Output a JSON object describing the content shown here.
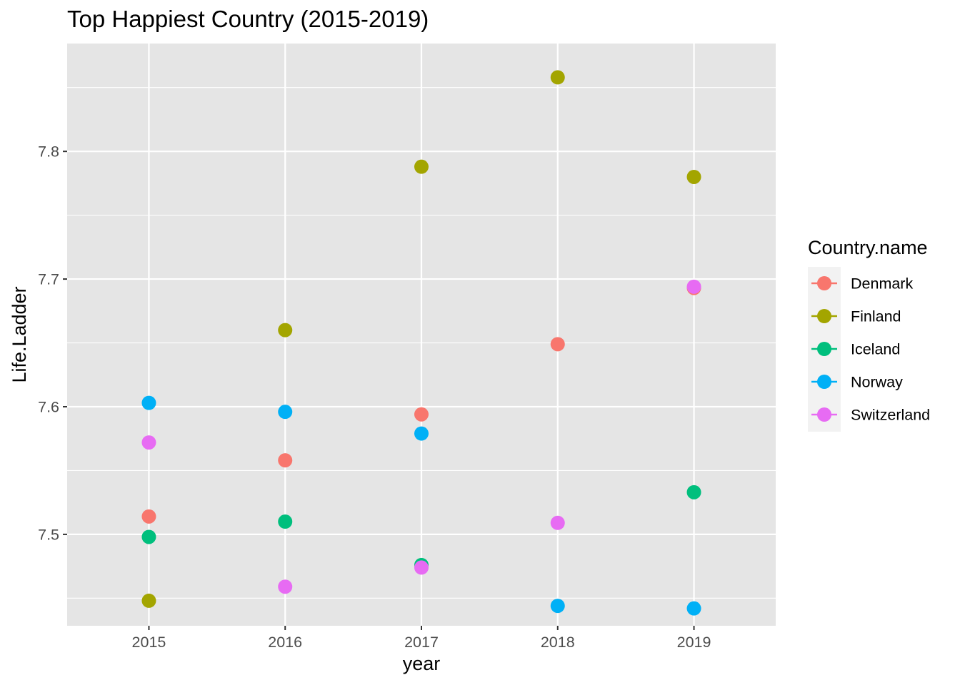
{
  "chart_data": {
    "type": "scatter",
    "title": "Top Happiest Country (2015-2019)",
    "xlabel": "year",
    "ylabel": "Life.Ladder",
    "x": [
      2015,
      2016,
      2017,
      2018,
      2019
    ],
    "xlim": [
      2014.4,
      2019.6
    ],
    "ylim": [
      7.4284,
      7.8845
    ],
    "y_ticks": [
      7.5,
      7.6,
      7.7,
      7.8
    ],
    "y_tick_labels": [
      "7.5",
      "7.6",
      "7.7",
      "7.8"
    ],
    "x_tick_labels": [
      "2015",
      "2016",
      "2017",
      "2018",
      "2019"
    ],
    "grid": true,
    "panel_background": "#e5e5e5",
    "legend": {
      "title": "Country.name",
      "position": "right"
    },
    "series": [
      {
        "name": "Denmark",
        "color": "#F8766D",
        "values": [
          7.514,
          7.558,
          7.594,
          7.649,
          7.693
        ]
      },
      {
        "name": "Finland",
        "color": "#A3A500",
        "values": [
          7.448,
          7.66,
          7.788,
          7.858,
          7.78
        ]
      },
      {
        "name": "Iceland",
        "color": "#00BF7D",
        "values": [
          7.498,
          7.51,
          7.476,
          null,
          7.533
        ]
      },
      {
        "name": "Norway",
        "color": "#00B0F6",
        "values": [
          7.603,
          7.596,
          7.579,
          7.444,
          7.442
        ]
      },
      {
        "name": "Switzerland",
        "color": "#E76BF3",
        "values": [
          7.572,
          7.459,
          7.474,
          7.509,
          7.694
        ]
      }
    ]
  }
}
